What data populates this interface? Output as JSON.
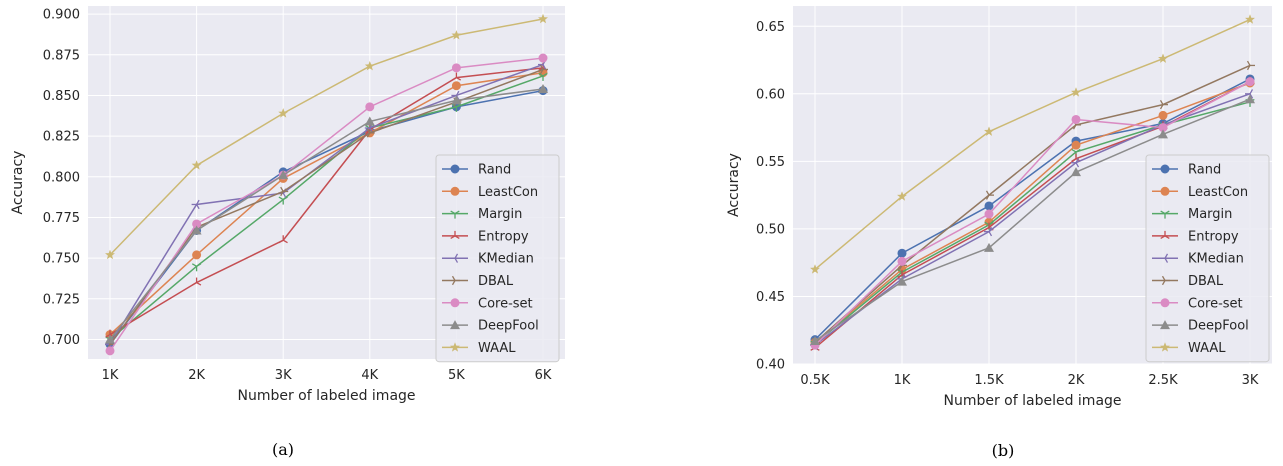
{
  "chart_data": [
    {
      "type": "line",
      "xlabel": "Number of labeled image",
      "ylabel": "Accuracy",
      "caption": "(a)",
      "categories": [
        "1K",
        "2K",
        "3K",
        "4K",
        "5K",
        "6K"
      ],
      "yticks": [
        "0.700",
        "0.725",
        "0.750",
        "0.775",
        "0.800",
        "0.825",
        "0.850",
        "0.875",
        "0.900"
      ],
      "ylim": [
        0.688,
        0.905
      ],
      "grid": true,
      "legend": "bottom-right",
      "series": [
        {
          "name": "Rand",
          "color": "#4c72b0",
          "marker": "circle",
          "values": [
            0.697,
            0.767,
            0.803,
            0.828,
            0.843,
            0.853
          ]
        },
        {
          "name": "LeastCon",
          "color": "#dd8452",
          "marker": "circle",
          "values": [
            0.703,
            0.752,
            0.799,
            0.827,
            0.856,
            0.864
          ]
        },
        {
          "name": "Margin",
          "color": "#55a868",
          "marker": "tri_down",
          "values": [
            0.7,
            0.745,
            0.786,
            0.83,
            0.843,
            0.862
          ]
        },
        {
          "name": "Entropy",
          "color": "#c44e52",
          "marker": "tri_up",
          "values": [
            0.703,
            0.735,
            0.761,
            0.829,
            0.861,
            0.867
          ]
        },
        {
          "name": "KMedian",
          "color": "#8172b3",
          "marker": "tri_left",
          "values": [
            0.697,
            0.783,
            0.79,
            0.83,
            0.85,
            0.869
          ]
        },
        {
          "name": "DBAL",
          "color": "#937860",
          "marker": "tri_right",
          "values": [
            0.697,
            0.769,
            0.791,
            0.827,
            0.846,
            0.866
          ]
        },
        {
          "name": "Core-set",
          "color": "#da8bc3",
          "marker": "circle",
          "values": [
            0.693,
            0.771,
            0.801,
            0.843,
            0.867,
            0.873
          ]
        },
        {
          "name": "DeepFool",
          "color": "#8c8c8c",
          "marker": "triangle",
          "values": [
            0.7,
            0.767,
            0.801,
            0.834,
            0.847,
            0.854
          ]
        },
        {
          "name": "WAAL",
          "color": "#ccb974",
          "marker": "star",
          "values": [
            0.752,
            0.807,
            0.839,
            0.868,
            0.887,
            0.897
          ]
        }
      ]
    },
    {
      "type": "line",
      "xlabel": "Number of labeled image",
      "ylabel": "Accuracy",
      "caption": "(b)",
      "categories": [
        "0.5K",
        "1K",
        "1.5K",
        "2K",
        "2.5K",
        "3K"
      ],
      "yticks": [
        "0.40",
        "0.45",
        "0.50",
        "0.55",
        "0.60",
        "0.65"
      ],
      "ylim": [
        0.4,
        0.665
      ],
      "grid": true,
      "legend": "bottom-right",
      "series": [
        {
          "name": "Rand",
          "color": "#4c72b0",
          "marker": "circle",
          "values": [
            0.418,
            0.482,
            0.517,
            0.565,
            0.578,
            0.611
          ]
        },
        {
          "name": "LeastCon",
          "color": "#dd8452",
          "marker": "circle",
          "values": [
            0.416,
            0.47,
            0.505,
            0.562,
            0.584,
            0.608
          ]
        },
        {
          "name": "Margin",
          "color": "#55a868",
          "marker": "tri_down",
          "values": [
            0.415,
            0.468,
            0.503,
            0.557,
            0.577,
            0.594
          ]
        },
        {
          "name": "Entropy",
          "color": "#c44e52",
          "marker": "tri_up",
          "values": [
            0.412,
            0.466,
            0.501,
            0.552,
            0.576,
            0.609
          ]
        },
        {
          "name": "KMedian",
          "color": "#8172b3",
          "marker": "tri_left",
          "values": [
            0.414,
            0.463,
            0.498,
            0.549,
            0.577,
            0.6
          ]
        },
        {
          "name": "DBAL",
          "color": "#937860",
          "marker": "tri_right",
          "values": [
            0.416,
            0.473,
            0.525,
            0.577,
            0.592,
            0.621
          ]
        },
        {
          "name": "Core-set",
          "color": "#da8bc3",
          "marker": "circle",
          "values": [
            0.414,
            0.476,
            0.511,
            0.581,
            0.575,
            0.609
          ]
        },
        {
          "name": "DeepFool",
          "color": "#8c8c8c",
          "marker": "triangle",
          "values": [
            0.417,
            0.461,
            0.486,
            0.542,
            0.57,
            0.596
          ]
        },
        {
          "name": "WAAL",
          "color": "#ccb974",
          "marker": "star",
          "values": [
            0.47,
            0.524,
            0.572,
            0.601,
            0.626,
            0.655
          ]
        }
      ]
    }
  ]
}
